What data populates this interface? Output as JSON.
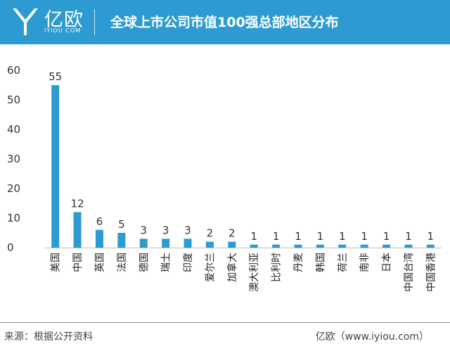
{
  "header": {
    "logo_text": "亿欧",
    "logo_sub": "IYIOU·COM",
    "title": "全球上市公司市值100强总部地区分布"
  },
  "colors": {
    "header_bg": "#2d9bd1",
    "bar": "#2d9bd1"
  },
  "chart_data": {
    "type": "bar",
    "title": "全球上市公司市值100强总部地区分布",
    "xlabel": "",
    "ylabel": "",
    "ylim": [
      0,
      60
    ],
    "yticks": [
      0,
      10,
      20,
      30,
      40,
      50,
      60
    ],
    "categories": [
      "美国",
      "中国",
      "英国",
      "法国",
      "德国",
      "瑞士",
      "印度",
      "爱尔兰",
      "加拿大",
      "澳大利亚",
      "比利时",
      "丹麦",
      "韩国",
      "荷兰",
      "南非",
      "日本",
      "中国台湾",
      "中国香港"
    ],
    "values": [
      55,
      12,
      6,
      5,
      3,
      3,
      3,
      2,
      2,
      1,
      1,
      1,
      1,
      1,
      1,
      1,
      1,
      1
    ],
    "grid": false
  },
  "footer": {
    "source": "来源：根据公开资料",
    "credit": "亿欧（www.iyiou.com）"
  }
}
